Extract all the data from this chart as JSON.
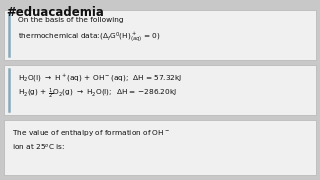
{
  "bg_color": "#c8c8c8",
  "title": "#eduacademia",
  "title_color": "#111111",
  "title_fontsize": 8.5,
  "box_facecolor": "#f0f0f0",
  "box_edgecolor": "#bbbbbb",
  "line_color": "#8aaabb",
  "text_color": "#111111",
  "text_fs": 5.3,
  "line1_box1": "On the basis of the following",
  "line2_box1": "thermochemical data:(Δ₆G⁰(H)⁺₊ₑᵣᵐ = 0)",
  "line1_box2_r1": "H₂O(l) → H⁺(aq) + OH⁻(aq);  ΔH = 57.32kJ",
  "line2_box2_r2": "H₂(g) + ½O₂(g) → H₂O(l);  ΔH = −286.20kJ",
  "line1_box3": "The value of enthalpy of formation of OH⁻",
  "line2_box3": "ion at 25°C is:"
}
